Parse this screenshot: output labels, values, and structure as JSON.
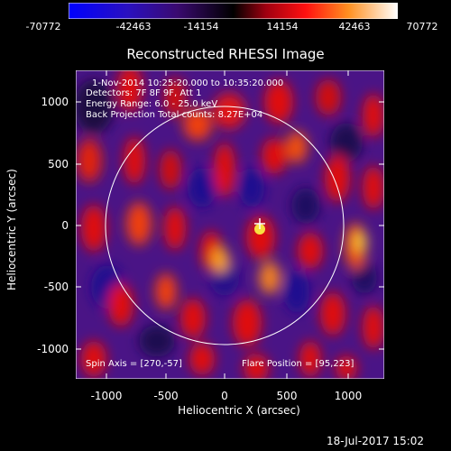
{
  "colorbar": {
    "labels": [
      "-70772",
      "-42463",
      "-14154",
      "14154",
      "42463",
      "70772"
    ]
  },
  "title": "Reconstructed RHESSI Image",
  "info_lines": [
    "1-Nov-2014 10:25:20.000 to 10:35:20.000",
    "Detectors: 7F 8F 9F, Att 1",
    "Energy Range: 6.0 - 25.0 keV",
    "Back Projection   Total counts: 8.27E+04"
  ],
  "spin_axis": "Spin Axis = [270,-57]",
  "flare_position": "Flare Position = [95,223]",
  "axes": {
    "xlabel": "Heliocentric X (arcsec)",
    "ylabel": "Heliocentric Y (arcsec)",
    "xticks": [
      "-1000",
      "-500",
      "0",
      "500",
      "1000"
    ],
    "yticks": [
      "1000",
      "500",
      "0",
      "-500",
      "-1000"
    ]
  },
  "footer_date": "18-Jul-2017 15:02",
  "colors": {
    "background": "#000000",
    "purple": "#5a1a9a",
    "dark_purple": "#3a0a70",
    "blue": "#2020c0",
    "red": "#e01010",
    "orange": "#f07010",
    "yellow": "#f8e040"
  }
}
